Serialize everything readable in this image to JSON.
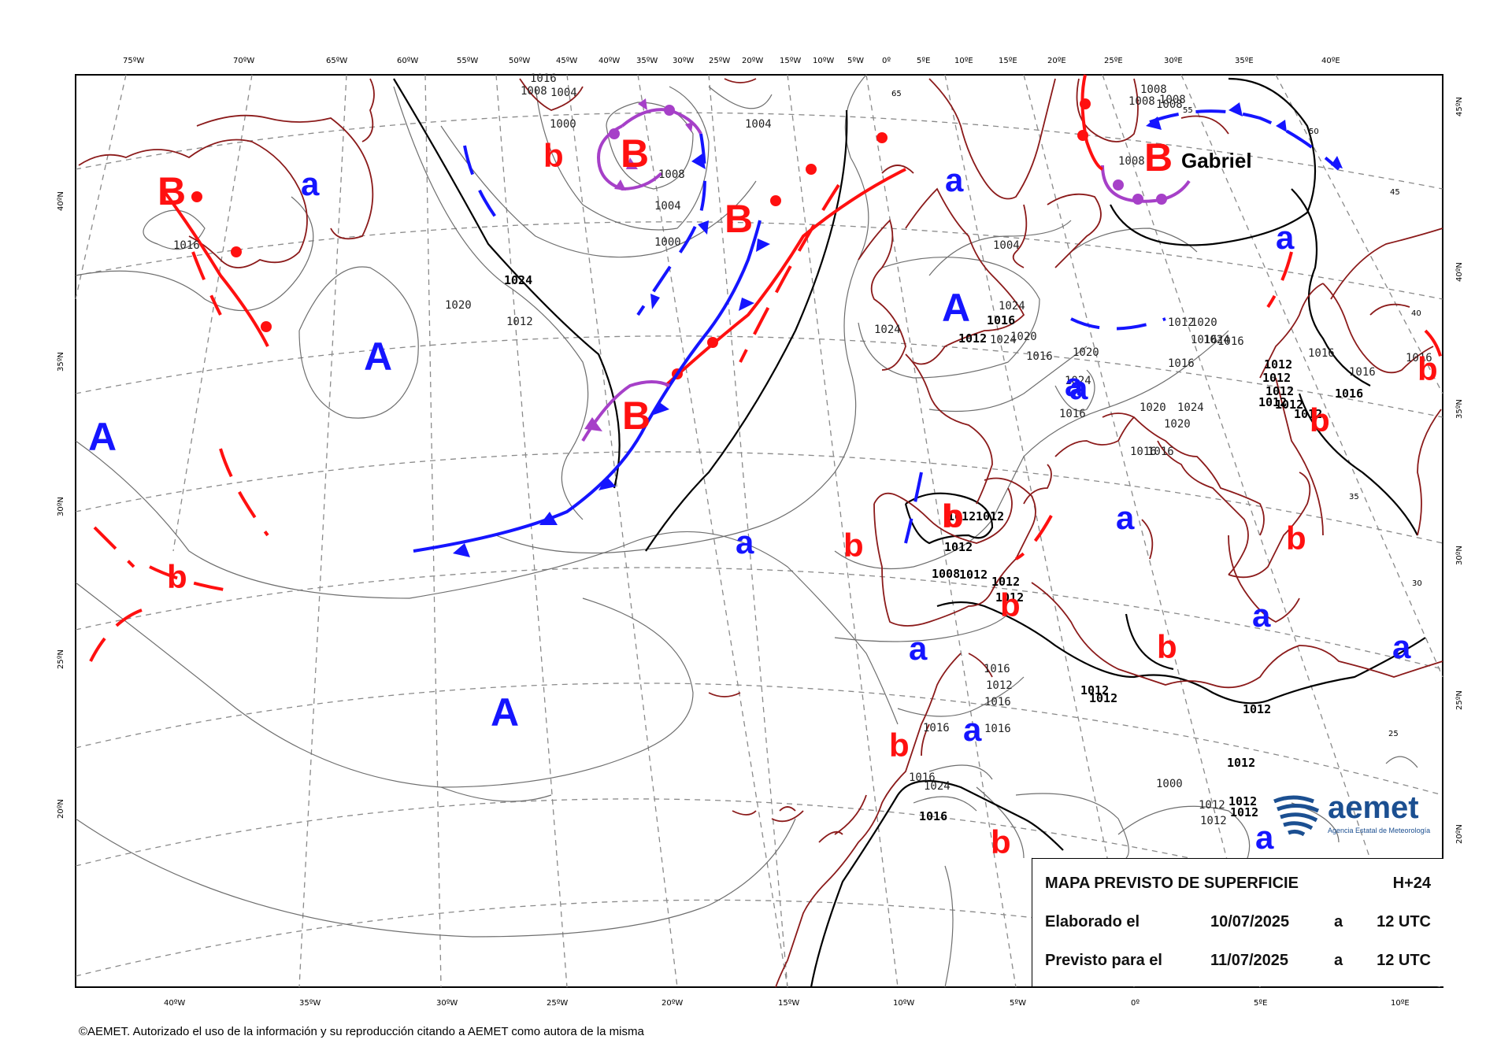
{
  "map": {
    "title": "MAPA PREVISTO DE SUPERFICIE",
    "horizon": "H+24",
    "issued_label": "Elaborado el",
    "issued_date": "10/07/2025",
    "issued_sep": "a",
    "issued_time": "12 UTC",
    "valid_label": "Previsto para el",
    "valid_date": "11/07/2025",
    "valid_sep": "a",
    "valid_time": "12 UTC"
  },
  "top_axis": [
    "75ºW",
    "70ºW",
    "65ºW",
    "60ºW",
    "55ºW",
    "50ºW",
    "45ºW",
    "40ºW",
    "35ºW",
    "30ºW",
    "25ºW",
    "20ºW",
    "15ºW",
    "10ºW",
    "5ºW",
    "0º",
    "5ºE",
    "10ºE",
    "15ºE",
    "20ºE",
    "25ºE",
    "30ºE",
    "35ºE",
    "40ºE"
  ],
  "bottom_axis": [
    "40ºW",
    "35ºW",
    "30ºW",
    "25ºW",
    "20ºW",
    "15ºW",
    "10ºW",
    "5ºW",
    "0º",
    "5ºE",
    "10ºE"
  ],
  "left_axis": [
    "40ºN",
    "35ºN",
    "30ºN",
    "25ºN",
    "20ºN"
  ],
  "right_axis": [
    "45ºN",
    "40ºN",
    "35ºN",
    "30ºN",
    "25ºN",
    "20ºN"
  ],
  "inner_labels": [
    "65",
    "55",
    "50",
    "45",
    "40",
    "35",
    "30",
    "25"
  ],
  "pressure_centers": {
    "high": [
      "A",
      "A",
      "A",
      "A",
      "A"
    ],
    "low": [
      "B",
      "B",
      "B",
      "B",
      "B"
    ],
    "rel_high": [
      "a",
      "a",
      "a",
      "a",
      "a",
      "a",
      "a",
      "a",
      "a",
      "a",
      "a",
      "a"
    ],
    "rel_low": [
      "b",
      "b",
      "b",
      "b",
      "b",
      "b",
      "b",
      "b",
      "b",
      "b",
      "b",
      "b",
      "b"
    ]
  },
  "storm_name": "Gabriel",
  "isobar_labels": [
    "1016",
    "1020",
    "1024",
    "1012",
    "1016",
    "1008",
    "1004",
    "1000",
    "1004",
    "1008",
    "1004",
    "1000",
    "1004",
    "1012",
    "1020",
    "1016",
    "1024",
    "1024",
    "1024",
    "1024",
    "1024",
    "1020",
    "1016",
    "1012",
    "1016",
    "1020",
    "1020",
    "1016",
    "1016",
    "1016",
    "1016",
    "1012",
    "1012",
    "1012",
    "1012",
    "1012",
    "1012",
    "1016",
    "1016",
    "1016",
    "1016",
    "1020",
    "1024",
    "1016",
    "1012",
    "1012",
    "1012",
    "1012",
    "1008",
    "1012",
    "1012",
    "1008",
    "1008",
    "1008",
    "1008",
    "1008",
    "1012",
    "1012",
    "1012",
    "1012",
    "1012",
    "1012",
    "1016",
    "1016",
    "1016",
    "1016",
    "1016",
    "1012",
    "1024",
    "1000",
    "1012",
    "1012",
    "1016"
  ],
  "logo": {
    "name": "aemet",
    "subtitle": "Agencia Estatal de Meteorología"
  },
  "copyright": "©AEMET. Autorizado el uso de la información y su reproducción citando a AEMET como autora de la misma",
  "colors": {
    "high": "#1515ff",
    "low": "#ff1010",
    "occluded": "#a640c8",
    "coast": "#8b1a1a",
    "logo": "#1b4f91"
  }
}
